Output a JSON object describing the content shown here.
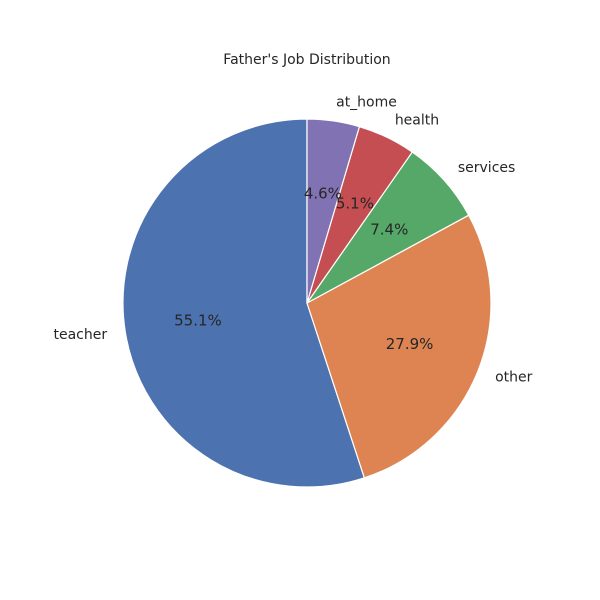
{
  "chart_data": {
    "type": "pie",
    "title": "Father's Job Distribution",
    "categories": [
      "teacher",
      "other",
      "services",
      "health",
      "at_home"
    ],
    "values": [
      55.1,
      27.9,
      7.4,
      5.1,
      4.6
    ],
    "percent_labels": [
      "55.1%",
      "27.9%",
      "7.4%",
      "5.1%",
      "4.6%"
    ],
    "colors": [
      "#4c72b0",
      "#dd8452",
      "#55a868",
      "#c44e52",
      "#8172b3"
    ],
    "start_angle_deg": 90,
    "direction": "counterclockwise",
    "edge_color": "#ffffff",
    "legend": "none"
  }
}
